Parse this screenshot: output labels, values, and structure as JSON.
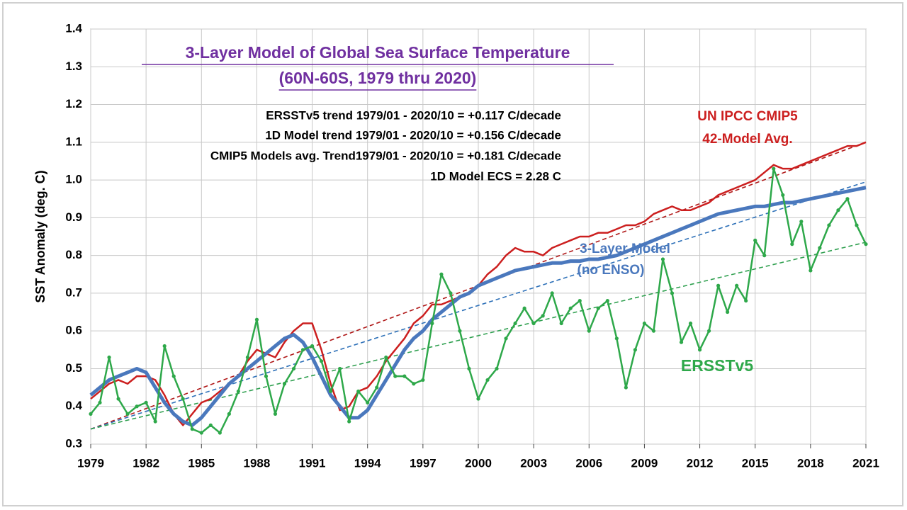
{
  "chart_data": {
    "type": "line",
    "title": [
      "3-Layer  Model of Global Sea Surface Temperature",
      "(60N-60S, 1979 thru 2020)"
    ],
    "y_label": "SST Anomaly (deg. C)",
    "annotations": [
      "ERSSTv5 trend 1979/01 - 2020/10 = +0.117 C/decade",
      "1D Model trend 1979/01 - 2020/10 = +0.156 C/decade",
      "CMIP5 Models avg. Trend1979/01 - 2020/10 =  +0.181 C/decade",
      "1D Model ECS = 2.28 C"
    ],
    "series_labels": [
      [
        "UN IPCC CMIP5",
        "42-Model Avg."
      ],
      [
        "3-Layer Model",
        "(no ENSO)"
      ],
      [
        "ERSSTv5"
      ]
    ],
    "x": [
      1979,
      1979.5,
      1980,
      1980.5,
      1981,
      1981.5,
      1982,
      1982.5,
      1983,
      1983.5,
      1984,
      1984.5,
      1985,
      1985.5,
      1986,
      1986.5,
      1987,
      1987.5,
      1988,
      1988.5,
      1989,
      1989.5,
      1990,
      1990.5,
      1991,
      1991.5,
      1992,
      1992.5,
      1993,
      1993.5,
      1994,
      1994.5,
      1995,
      1995.5,
      1996,
      1996.5,
      1997,
      1997.5,
      1998,
      1998.5,
      1999,
      1999.5,
      2000,
      2000.5,
      2001,
      2001.5,
      2002,
      2002.5,
      2003,
      2003.5,
      2004,
      2004.5,
      2005,
      2005.5,
      2006,
      2006.5,
      2007,
      2007.5,
      2008,
      2008.5,
      2009,
      2009.5,
      2010,
      2010.5,
      2011,
      2011.5,
      2012,
      2012.5,
      2013,
      2013.5,
      2014,
      2014.5,
      2015,
      2015.5,
      2016,
      2016.5,
      2017,
      2017.5,
      2018,
      2018.5,
      2019,
      2019.5,
      2020,
      2020.5,
      2021
    ],
    "series": [
      {
        "color": "#cc1f1f",
        "width": 2.5,
        "markers": false,
        "values": [
          0.42,
          0.44,
          0.46,
          0.47,
          0.46,
          0.48,
          0.48,
          0.47,
          0.43,
          0.38,
          0.35,
          0.38,
          0.41,
          0.42,
          0.44,
          0.46,
          0.48,
          0.52,
          0.55,
          0.54,
          0.53,
          0.57,
          0.6,
          0.62,
          0.62,
          0.55,
          0.46,
          0.39,
          0.4,
          0.44,
          0.45,
          0.48,
          0.52,
          0.55,
          0.58,
          0.62,
          0.64,
          0.67,
          0.67,
          0.68,
          0.69,
          0.7,
          0.72,
          0.75,
          0.77,
          0.8,
          0.82,
          0.81,
          0.81,
          0.8,
          0.82,
          0.83,
          0.84,
          0.85,
          0.85,
          0.86,
          0.86,
          0.87,
          0.88,
          0.88,
          0.89,
          0.91,
          0.92,
          0.93,
          0.92,
          0.92,
          0.93,
          0.94,
          0.96,
          0.97,
          0.98,
          0.99,
          1.0,
          1.02,
          1.04,
          1.03,
          1.03,
          1.04,
          1.05,
          1.06,
          1.07,
          1.08,
          1.09,
          1.09,
          1.1
        ]
      },
      {
        "color": "#4a78bd",
        "width": 5,
        "markers": false,
        "values": [
          0.43,
          0.45,
          0.47,
          0.48,
          0.49,
          0.5,
          0.49,
          0.45,
          0.41,
          0.38,
          0.36,
          0.35,
          0.37,
          0.4,
          0.43,
          0.46,
          0.48,
          0.5,
          0.52,
          0.54,
          0.56,
          0.58,
          0.59,
          0.57,
          0.53,
          0.48,
          0.43,
          0.4,
          0.37,
          0.37,
          0.39,
          0.43,
          0.47,
          0.51,
          0.55,
          0.58,
          0.6,
          0.63,
          0.65,
          0.67,
          0.69,
          0.7,
          0.72,
          0.73,
          0.74,
          0.75,
          0.76,
          0.765,
          0.77,
          0.775,
          0.78,
          0.78,
          0.785,
          0.785,
          0.79,
          0.79,
          0.795,
          0.8,
          0.81,
          0.82,
          0.83,
          0.84,
          0.85,
          0.86,
          0.87,
          0.88,
          0.89,
          0.9,
          0.91,
          0.915,
          0.92,
          0.925,
          0.93,
          0.93,
          0.935,
          0.94,
          0.94,
          0.945,
          0.95,
          0.955,
          0.96,
          0.965,
          0.97,
          0.975,
          0.98
        ]
      },
      {
        "color": "#2ea84a",
        "width": 2.5,
        "markers": true,
        "values": [
          0.38,
          0.41,
          0.53,
          0.42,
          0.38,
          0.4,
          0.41,
          0.36,
          0.56,
          0.48,
          0.42,
          0.34,
          0.33,
          0.35,
          0.33,
          0.38,
          0.44,
          0.53,
          0.63,
          0.48,
          0.38,
          0.46,
          0.5,
          0.55,
          0.56,
          0.52,
          0.44,
          0.5,
          0.36,
          0.44,
          0.41,
          0.45,
          0.53,
          0.48,
          0.48,
          0.46,
          0.47,
          0.62,
          0.75,
          0.7,
          0.6,
          0.5,
          0.42,
          0.47,
          0.5,
          0.58,
          0.62,
          0.66,
          0.62,
          0.64,
          0.7,
          0.62,
          0.66,
          0.68,
          0.6,
          0.66,
          0.68,
          0.58,
          0.45,
          0.55,
          0.62,
          0.6,
          0.79,
          0.7,
          0.57,
          0.62,
          0.55,
          0.6,
          0.72,
          0.65,
          0.72,
          0.68,
          0.84,
          0.8,
          1.03,
          0.96,
          0.83,
          0.89,
          0.76,
          0.82,
          0.88,
          0.92,
          0.95,
          0.88,
          0.83
        ]
      }
    ],
    "trend_x": [
      1979,
      2021
    ],
    "trend_lines": [
      {
        "color": "#b01818",
        "values": [
          0.34,
          1.1
        ]
      },
      {
        "color": "#2d70b8",
        "values": [
          0.34,
          0.995
        ]
      },
      {
        "color": "#30a050",
        "values": [
          0.34,
          0.835
        ]
      }
    ],
    "xlim": [
      1979,
      2021
    ],
    "xticks": [
      1979,
      1982,
      1985,
      1988,
      1991,
      1994,
      1997,
      2000,
      2003,
      2006,
      2009,
      2012,
      2015,
      2018,
      2021
    ],
    "ylim": [
      0.3,
      1.4
    ],
    "yticks": [
      0.3,
      0.4,
      0.5,
      0.6,
      0.7,
      0.8,
      0.9,
      {
        "value": 1,
        "label": "1.0"
      },
      1.1,
      1.2,
      1.3,
      1.4
    ],
    "grid": true
  }
}
